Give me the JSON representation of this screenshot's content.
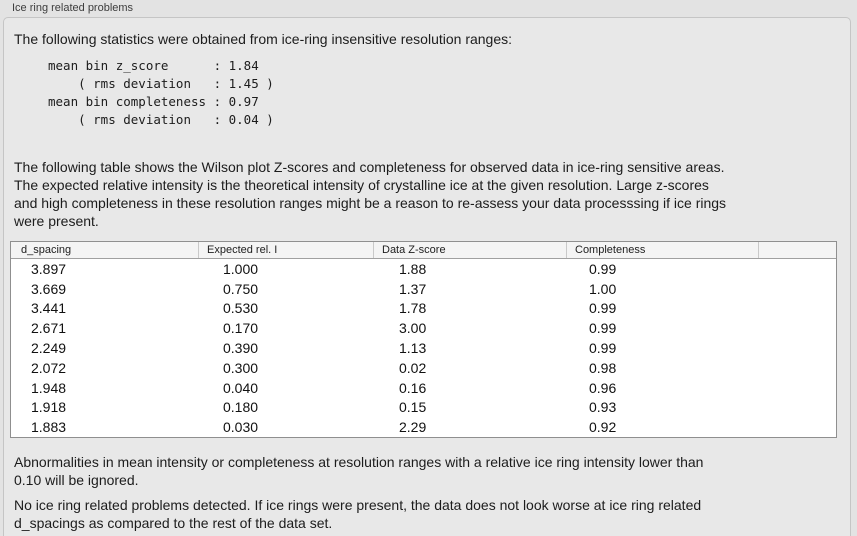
{
  "panel": {
    "title": "Ice ring related problems"
  },
  "intro": "The following statistics were obtained from ice-ring insensitive resolution ranges:",
  "stats_block": "mean bin z_score      : 1.84\n    ( rms deviation   : 1.45 )\nmean bin completeness : 0.97\n    ( rms deviation   : 0.04 )",
  "description": "The following table shows the Wilson plot Z-scores and completeness for observed data in ice-ring sensitive areas.\nThe expected relative intensity is the theoretical intensity of crystalline ice at the given resolution. Large z-scores\nand high completeness in these resolution ranges might be a reason to re-assess your data processsing if ice rings\nwere present.",
  "table": {
    "columns": [
      "d_spacing",
      "Expected rel. I",
      "Data Z-score",
      "Completeness"
    ],
    "rows": [
      [
        "3.897",
        "1.000",
        "1.88",
        "0.99"
      ],
      [
        "3.669",
        "0.750",
        "1.37",
        "1.00"
      ],
      [
        "3.441",
        "0.530",
        "1.78",
        "0.99"
      ],
      [
        "2.671",
        "0.170",
        "3.00",
        "0.99"
      ],
      [
        "2.249",
        "0.390",
        "1.13",
        "0.99"
      ],
      [
        "2.072",
        "0.300",
        "0.02",
        "0.98"
      ],
      [
        "1.948",
        "0.040",
        "0.16",
        "0.96"
      ],
      [
        "1.918",
        "0.180",
        "0.15",
        "0.93"
      ],
      [
        "1.883",
        "0.030",
        "2.29",
        "0.92"
      ]
    ]
  },
  "note": "Abnormalities in mean intensity or completeness at resolution ranges with a relative ice ring intensity lower than\n0.10 will be ignored.",
  "conclusion": "No ice ring related problems detected. If ice rings were present, the data does not look worse at ice ring related\nd_spacings as compared to the rest of the data set.",
  "colors": {
    "outer_background": "#e3e3e3",
    "panel_background": "#e8e8e8",
    "table_background": "#ffffff",
    "table_border": "#8f8f8f"
  }
}
